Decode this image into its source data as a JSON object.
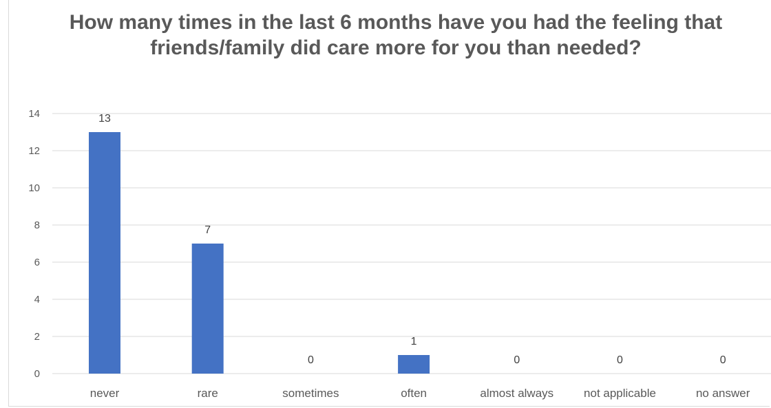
{
  "chart_data": {
    "type": "bar",
    "title": "How many times in the last 6 months have you had the feeling that friends/family did care more for you than needed?",
    "categories": [
      "never",
      "rare",
      "sometimes",
      "often",
      "almost always",
      "not applicable",
      "no answer"
    ],
    "values": [
      13,
      7,
      0,
      1,
      0,
      0,
      0
    ],
    "data_labels": [
      "13",
      "7",
      "0",
      "1",
      "0",
      "0",
      "0"
    ],
    "yticks": [
      "0",
      "2",
      "4",
      "6",
      "8",
      "10",
      "12",
      "14"
    ],
    "ylim": [
      0,
      14
    ],
    "xlabel": "",
    "ylabel": "",
    "grid": true,
    "legend": "none",
    "bar_color": "#4472c4"
  }
}
